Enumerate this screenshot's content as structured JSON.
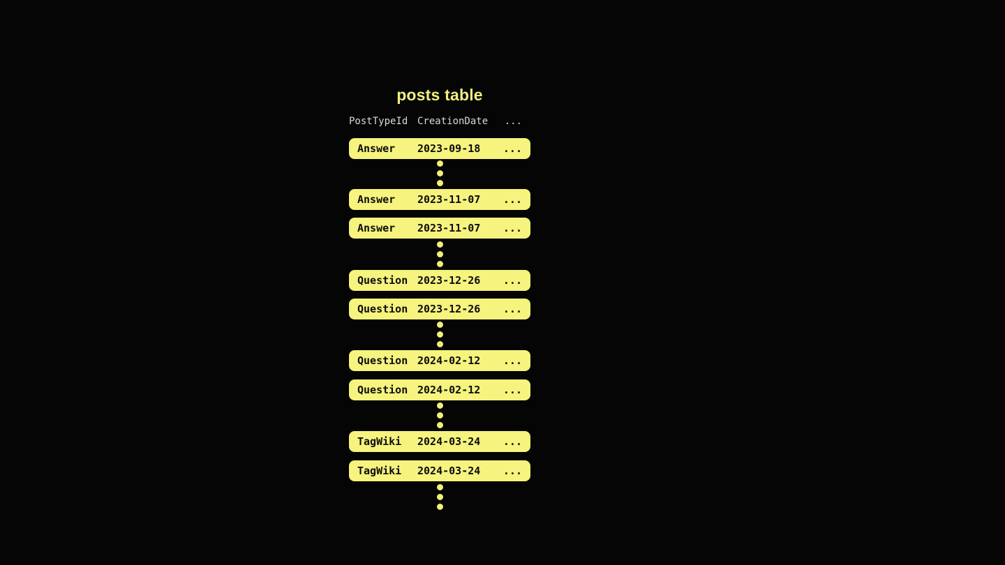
{
  "title": "posts table",
  "colors": {
    "background": "#050505",
    "accent_yellow": "#f2ef79",
    "row_background": "#f6f37e",
    "row_text": "#0d0d0d",
    "header_text": "#d9d9d9",
    "title_text": "#f1ee7f"
  },
  "table": {
    "headers": {
      "post_type": "PostTypeId",
      "creation_date": "CreationDate",
      "more": "..."
    },
    "rows": [
      {
        "post_type": "Answer",
        "creation_date": "2023-09-18",
        "more": "..."
      },
      {
        "post_type": "Answer",
        "creation_date": "2023-11-07",
        "more": "..."
      },
      {
        "post_type": "Answer",
        "creation_date": "2023-11-07",
        "more": "..."
      },
      {
        "post_type": "Question",
        "creation_date": "2023-12-26",
        "more": "..."
      },
      {
        "post_type": "Question",
        "creation_date": "2023-12-26",
        "more": "..."
      },
      {
        "post_type": "Question",
        "creation_date": "2024-02-12",
        "more": "..."
      },
      {
        "post_type": "Question",
        "creation_date": "2024-02-12",
        "more": "..."
      },
      {
        "post_type": "TagWiki",
        "creation_date": "2024-03-24",
        "more": "..."
      },
      {
        "post_type": "TagWiki",
        "creation_date": "2024-03-24",
        "more": "..."
      }
    ]
  }
}
